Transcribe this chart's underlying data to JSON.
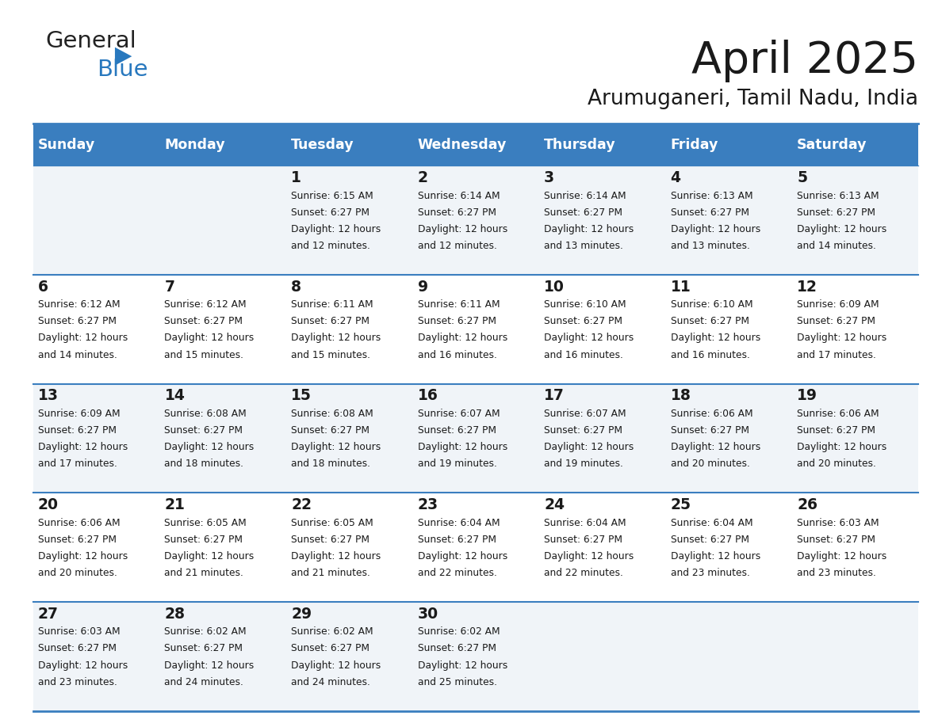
{
  "title": "April 2025",
  "subtitle": "Arumuganeri, Tamil Nadu, India",
  "header_bg_color": "#3a7ebf",
  "header_text_color": "#ffffff",
  "cell_bg_odd": "#f0f4f8",
  "cell_bg_even": "#ffffff",
  "border_color": "#3a7ebf",
  "text_color": "#1a1a1a",
  "days_of_week": [
    "Sunday",
    "Monday",
    "Tuesday",
    "Wednesday",
    "Thursday",
    "Friday",
    "Saturday"
  ],
  "weeks": [
    [
      {
        "day": "",
        "info": ""
      },
      {
        "day": "",
        "info": ""
      },
      {
        "day": "1",
        "info": "Sunrise: 6:15 AM\nSunset: 6:27 PM\nDaylight: 12 hours\nand 12 minutes."
      },
      {
        "day": "2",
        "info": "Sunrise: 6:14 AM\nSunset: 6:27 PM\nDaylight: 12 hours\nand 12 minutes."
      },
      {
        "day": "3",
        "info": "Sunrise: 6:14 AM\nSunset: 6:27 PM\nDaylight: 12 hours\nand 13 minutes."
      },
      {
        "day": "4",
        "info": "Sunrise: 6:13 AM\nSunset: 6:27 PM\nDaylight: 12 hours\nand 13 minutes."
      },
      {
        "day": "5",
        "info": "Sunrise: 6:13 AM\nSunset: 6:27 PM\nDaylight: 12 hours\nand 14 minutes."
      }
    ],
    [
      {
        "day": "6",
        "info": "Sunrise: 6:12 AM\nSunset: 6:27 PM\nDaylight: 12 hours\nand 14 minutes."
      },
      {
        "day": "7",
        "info": "Sunrise: 6:12 AM\nSunset: 6:27 PM\nDaylight: 12 hours\nand 15 minutes."
      },
      {
        "day": "8",
        "info": "Sunrise: 6:11 AM\nSunset: 6:27 PM\nDaylight: 12 hours\nand 15 minutes."
      },
      {
        "day": "9",
        "info": "Sunrise: 6:11 AM\nSunset: 6:27 PM\nDaylight: 12 hours\nand 16 minutes."
      },
      {
        "day": "10",
        "info": "Sunrise: 6:10 AM\nSunset: 6:27 PM\nDaylight: 12 hours\nand 16 minutes."
      },
      {
        "day": "11",
        "info": "Sunrise: 6:10 AM\nSunset: 6:27 PM\nDaylight: 12 hours\nand 16 minutes."
      },
      {
        "day": "12",
        "info": "Sunrise: 6:09 AM\nSunset: 6:27 PM\nDaylight: 12 hours\nand 17 minutes."
      }
    ],
    [
      {
        "day": "13",
        "info": "Sunrise: 6:09 AM\nSunset: 6:27 PM\nDaylight: 12 hours\nand 17 minutes."
      },
      {
        "day": "14",
        "info": "Sunrise: 6:08 AM\nSunset: 6:27 PM\nDaylight: 12 hours\nand 18 minutes."
      },
      {
        "day": "15",
        "info": "Sunrise: 6:08 AM\nSunset: 6:27 PM\nDaylight: 12 hours\nand 18 minutes."
      },
      {
        "day": "16",
        "info": "Sunrise: 6:07 AM\nSunset: 6:27 PM\nDaylight: 12 hours\nand 19 minutes."
      },
      {
        "day": "17",
        "info": "Sunrise: 6:07 AM\nSunset: 6:27 PM\nDaylight: 12 hours\nand 19 minutes."
      },
      {
        "day": "18",
        "info": "Sunrise: 6:06 AM\nSunset: 6:27 PM\nDaylight: 12 hours\nand 20 minutes."
      },
      {
        "day": "19",
        "info": "Sunrise: 6:06 AM\nSunset: 6:27 PM\nDaylight: 12 hours\nand 20 minutes."
      }
    ],
    [
      {
        "day": "20",
        "info": "Sunrise: 6:06 AM\nSunset: 6:27 PM\nDaylight: 12 hours\nand 20 minutes."
      },
      {
        "day": "21",
        "info": "Sunrise: 6:05 AM\nSunset: 6:27 PM\nDaylight: 12 hours\nand 21 minutes."
      },
      {
        "day": "22",
        "info": "Sunrise: 6:05 AM\nSunset: 6:27 PM\nDaylight: 12 hours\nand 21 minutes."
      },
      {
        "day": "23",
        "info": "Sunrise: 6:04 AM\nSunset: 6:27 PM\nDaylight: 12 hours\nand 22 minutes."
      },
      {
        "day": "24",
        "info": "Sunrise: 6:04 AM\nSunset: 6:27 PM\nDaylight: 12 hours\nand 22 minutes."
      },
      {
        "day": "25",
        "info": "Sunrise: 6:04 AM\nSunset: 6:27 PM\nDaylight: 12 hours\nand 23 minutes."
      },
      {
        "day": "26",
        "info": "Sunrise: 6:03 AM\nSunset: 6:27 PM\nDaylight: 12 hours\nand 23 minutes."
      }
    ],
    [
      {
        "day": "27",
        "info": "Sunrise: 6:03 AM\nSunset: 6:27 PM\nDaylight: 12 hours\nand 23 minutes."
      },
      {
        "day": "28",
        "info": "Sunrise: 6:02 AM\nSunset: 6:27 PM\nDaylight: 12 hours\nand 24 minutes."
      },
      {
        "day": "29",
        "info": "Sunrise: 6:02 AM\nSunset: 6:27 PM\nDaylight: 12 hours\nand 24 minutes."
      },
      {
        "day": "30",
        "info": "Sunrise: 6:02 AM\nSunset: 6:27 PM\nDaylight: 12 hours\nand 25 minutes."
      },
      {
        "day": "",
        "info": ""
      },
      {
        "day": "",
        "info": ""
      },
      {
        "day": "",
        "info": ""
      }
    ]
  ],
  "logo_general_color": "#222222",
  "logo_blue_color": "#2878be",
  "logo_triangle_color": "#2878be",
  "fig_width": 11.88,
  "fig_height": 9.18,
  "dpi": 100
}
